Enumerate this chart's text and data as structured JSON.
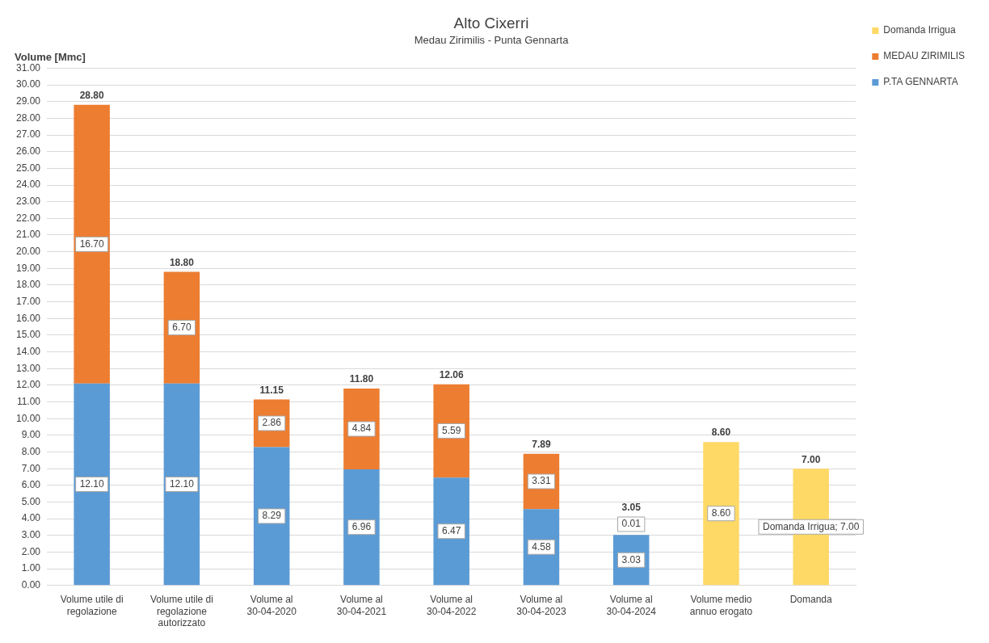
{
  "chart_data": {
    "type": "bar",
    "title": "Alto Cixerri",
    "subtitle": "Medau Zirimilis - Punta Gennarta",
    "ylabel": "Volume [Mmc]",
    "stacked": true,
    "grid": "y",
    "legend": "top right",
    "categories": [
      "Volume utile di regolazione",
      "Volume utile di regolazione autorizzato",
      "Volume al 30-04-2020",
      "Volume al 30-04-2021",
      "Volume al 30-04-2022",
      "Volume al 30-04-2023",
      "Volume al 30-04-2024",
      "Volume medio annuo erogato",
      "Domanda"
    ],
    "series": [
      {
        "name": "P.TA GENNARTA",
        "color": "#5b9bd5",
        "values": [
          12.1,
          12.1,
          8.29,
          6.96,
          6.47,
          4.58,
          3.03,
          null,
          null
        ],
        "value_labels": [
          "12.10",
          "12.10",
          "8.29",
          "6.96",
          "6.47",
          "4.58",
          "3.03",
          null,
          null
        ]
      },
      {
        "name": "MEDAU ZIRIMILIS",
        "color": "#ed7d31",
        "values": [
          16.7,
          6.7,
          2.86,
          4.84,
          5.59,
          3.31,
          0.01,
          null,
          null
        ],
        "value_labels": [
          "16.70",
          "6.70",
          "2.86",
          "4.84",
          "5.59",
          "3.31",
          "0.01",
          null,
          null
        ]
      },
      {
        "name": "Domanda Irrigua",
        "color": "#ffd966",
        "values": [
          null,
          null,
          null,
          null,
          null,
          null,
          null,
          8.6,
          7.0
        ],
        "value_labels": [
          null,
          null,
          null,
          null,
          null,
          null,
          null,
          "8.60",
          "Domanda Irrigua; 7.00"
        ]
      }
    ],
    "totals": [
      "28.80",
      "18.80",
      "11.15",
      "11.80",
      "12.06",
      "7.89",
      "3.05",
      "8.60",
      "7.00"
    ],
    "ylim": [
      0,
      31
    ],
    "yticks": [
      {
        "value": 0,
        "label": "0.00"
      },
      {
        "value": 1,
        "label": "1.00"
      },
      {
        "value": 2,
        "label": "2.00"
      },
      {
        "value": 3,
        "label": "3.00"
      },
      {
        "value": 4,
        "label": "4.00"
      },
      {
        "value": 5,
        "label": "5.00"
      },
      {
        "value": 6,
        "label": "6.00"
      },
      {
        "value": 7,
        "label": "7.00"
      },
      {
        "value": 8,
        "label": "8.00"
      },
      {
        "value": 9,
        "label": "9.00"
      },
      {
        "value": 10,
        "label": "10.00"
      },
      {
        "value": 11,
        "label": "11.00"
      },
      {
        "value": 12,
        "label": "12.00"
      },
      {
        "value": 13,
        "label": "13.00"
      },
      {
        "value": 14,
        "label": "14.00"
      },
      {
        "value": 15,
        "label": "15.00"
      },
      {
        "value": 16,
        "label": "16.00"
      },
      {
        "value": 17,
        "label": "17.00"
      },
      {
        "value": 18,
        "label": "18.00"
      },
      {
        "value": 19,
        "label": "19.00"
      },
      {
        "value": 20,
        "label": "20.00"
      },
      {
        "value": 21,
        "label": "21.00"
      },
      {
        "value": 22,
        "label": "22.00"
      },
      {
        "value": 23,
        "label": "23.00"
      },
      {
        "value": 24,
        "label": "24.00"
      },
      {
        "value": 25,
        "label": "25.00"
      },
      {
        "value": 26,
        "label": "26.00"
      },
      {
        "value": 27,
        "label": "27.00"
      },
      {
        "value": 28,
        "label": "28.00"
      },
      {
        "value": 29,
        "label": "29.00"
      },
      {
        "value": 30,
        "label": "30.00"
      },
      {
        "value": 31,
        "label": "31.00"
      }
    ]
  }
}
